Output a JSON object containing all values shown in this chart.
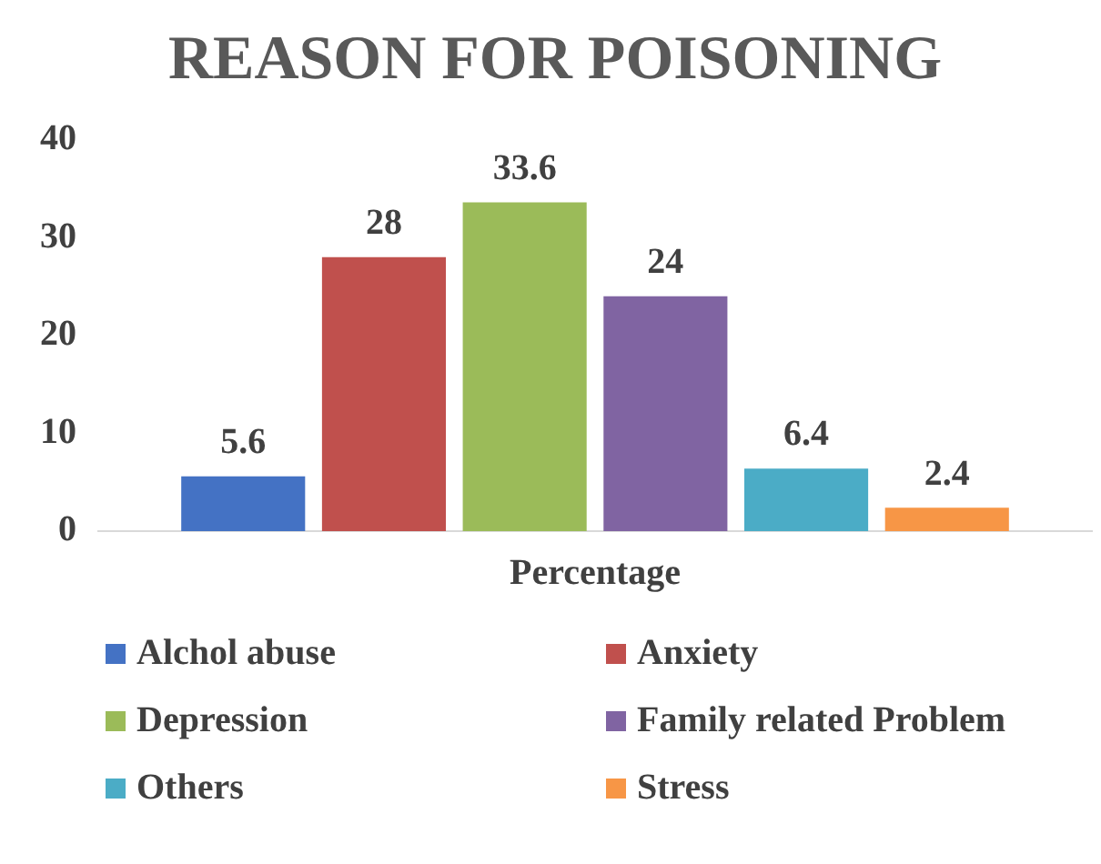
{
  "chart_data": {
    "type": "bar",
    "title": "REASON FOR POISONING",
    "categories": [
      "Percentage"
    ],
    "series": [
      {
        "name": "Alchol abuse",
        "color": "#4472c4",
        "values": [
          5.6
        ]
      },
      {
        "name": "Anxiety",
        "color": "#c0504d",
        "values": [
          28
        ]
      },
      {
        "name": "Depression",
        "color": "#9bbb59",
        "values": [
          33.6
        ]
      },
      {
        "name": "Family related Problem",
        "color": "#8064a2",
        "values": [
          24
        ]
      },
      {
        "name": "Others",
        "color": "#4bacc6",
        "values": [
          6.4
        ]
      },
      {
        "name": "Stress",
        "color": "#f79646",
        "values": [
          2.4
        ]
      }
    ],
    "ylim": [
      0,
      40
    ],
    "yticks": [
      0,
      10,
      20,
      30,
      40
    ],
    "grid": false,
    "data_labels": true,
    "legend": "bottom"
  }
}
